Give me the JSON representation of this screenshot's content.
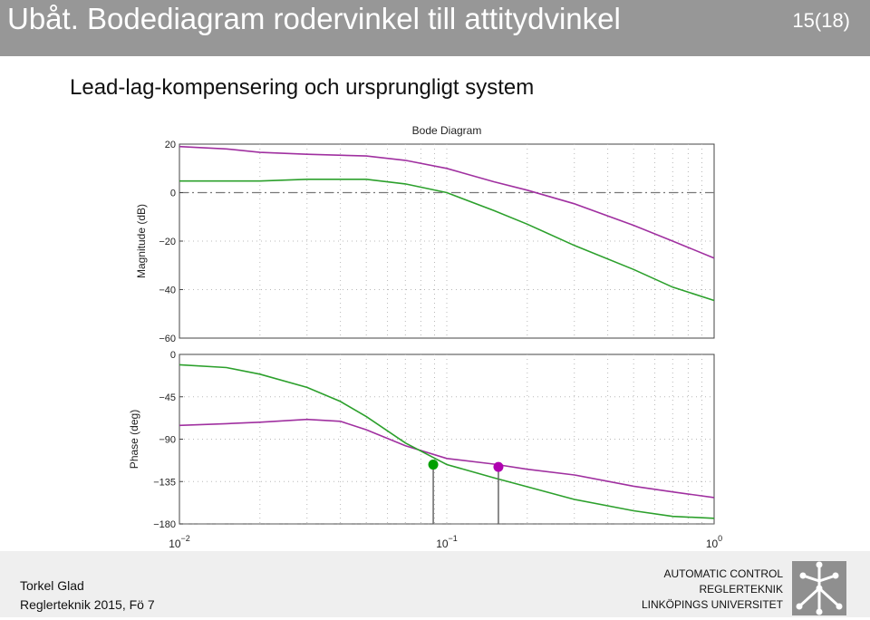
{
  "header": {
    "title": "Ubåt. Bodediagram rodervinkel till attitydvinkel",
    "page": "15(18)"
  },
  "slide": {
    "subtitle": "Lead-lag-kompensering och ursprungligt system"
  },
  "chart_data": {
    "type": "line",
    "title": "Bode Diagram",
    "x_scale": "log",
    "xlim": [
      0.01,
      1
    ],
    "x_ticks": [
      {
        "value": 0.01,
        "base": "10",
        "exp": "−2"
      },
      {
        "value": 0.1,
        "base": "10",
        "exp": "−1"
      },
      {
        "value": 1,
        "base": "10",
        "exp": "0"
      }
    ],
    "grid": true,
    "panels": [
      {
        "name": "magnitude",
        "ylabel": "Magnitude (dB)",
        "ylim": [
          -60,
          20
        ],
        "y_tick_labels": [
          "20",
          "0",
          "−20",
          "−40",
          "−60"
        ],
        "y_ticks": [
          20,
          0,
          -20,
          -40,
          -60
        ],
        "reference_line": 0,
        "series": [
          {
            "name": "",
            "color": "#a030a0",
            "x": [
              0.01,
              0.015,
              0.02,
              0.03,
              0.05,
              0.07,
              0.1,
              0.15,
              0.2,
              0.3,
              0.5,
              0.7,
              1.0
            ],
            "y": [
              19.0,
              18.0,
              16.6,
              15.8,
              15.1,
              13.3,
              10.0,
              4.5,
              1.0,
              -4.6,
              -13.5,
              -20.0,
              -27.0
            ]
          },
          {
            "name": "",
            "color": "#2ca02c",
            "x": [
              0.01,
              0.02,
              0.03,
              0.05,
              0.07,
              0.1,
              0.15,
              0.2,
              0.3,
              0.5,
              0.7,
              1.0
            ],
            "y": [
              4.8,
              4.8,
              5.5,
              5.5,
              3.6,
              0.0,
              -7.4,
              -13.0,
              -21.8,
              -31.7,
              -39.0,
              -44.5
            ]
          }
        ]
      },
      {
        "name": "phase",
        "ylabel": "Phase (deg)",
        "ylim": [
          -180,
          0
        ],
        "y_tick_labels": [
          "0",
          "−45",
          "−90",
          "−135",
          "−180"
        ],
        "y_ticks": [
          0,
          -45,
          -90,
          -135,
          -180
        ],
        "reference_line": -180,
        "series": [
          {
            "name": "",
            "color": "#a030a0",
            "x": [
              0.01,
              0.015,
              0.02,
              0.03,
              0.04,
              0.05,
              0.07,
              0.1,
              0.15,
              0.2,
              0.3,
              0.5,
              0.7,
              1.0
            ],
            "y": [
              -75.4,
              -73.5,
              -72.0,
              -69.0,
              -71.0,
              -80.0,
              -97.0,
              -110.5,
              -116.5,
              -122.0,
              -128.0,
              -140.0,
              -146.0,
              -152.0
            ]
          },
          {
            "name": "",
            "color": "#2ca02c",
            "x": [
              0.01,
              0.015,
              0.02,
              0.03,
              0.04,
              0.05,
              0.07,
              0.1,
              0.15,
              0.2,
              0.3,
              0.5,
              0.7,
              1.0
            ],
            "y": [
              -11.0,
              -14.0,
              -21.0,
              -35.0,
              -50.0,
              -66.0,
              -94.0,
              -117.0,
              -131.0,
              -140.5,
              -154.0,
              -166.0,
              -172.0,
              -174.0
            ]
          }
        ]
      }
    ],
    "markers": [
      {
        "x": 0.089,
        "y": -117,
        "color": "#00a000"
      },
      {
        "x": 0.156,
        "y": -119.5,
        "color": "#b000b0"
      }
    ]
  },
  "footer": {
    "author": "Torkel Glad",
    "course": "Reglerteknik 2015, Fö 7",
    "inst_line1": "AUTOMATIC CONTROL",
    "inst_line2": "REGLERTEKNIK",
    "inst_line3": "LINKÖPINGS UNIVERSITET"
  }
}
